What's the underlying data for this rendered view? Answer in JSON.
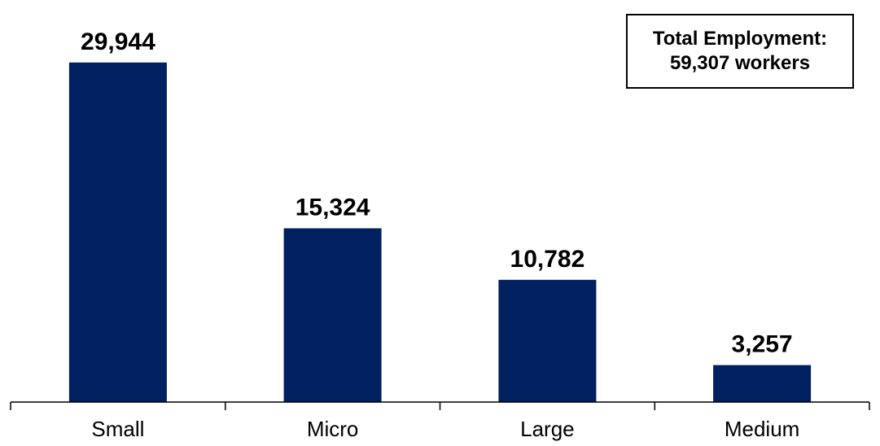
{
  "chart_data": {
    "type": "bar",
    "categories": [
      "Small",
      "Micro",
      "Large",
      "Medium"
    ],
    "values": [
      29944,
      15324,
      10782,
      3257
    ],
    "value_labels": [
      "29,944",
      "15,324",
      "10,782",
      "3,257"
    ],
    "title": "",
    "xlabel": "",
    "ylabel": "",
    "ylim": [
      0,
      30000
    ],
    "grid": false,
    "legend": "none",
    "bar_color": "#002060",
    "annotation": {
      "line1": "Total Employment:",
      "line2": "59,307 workers"
    }
  }
}
